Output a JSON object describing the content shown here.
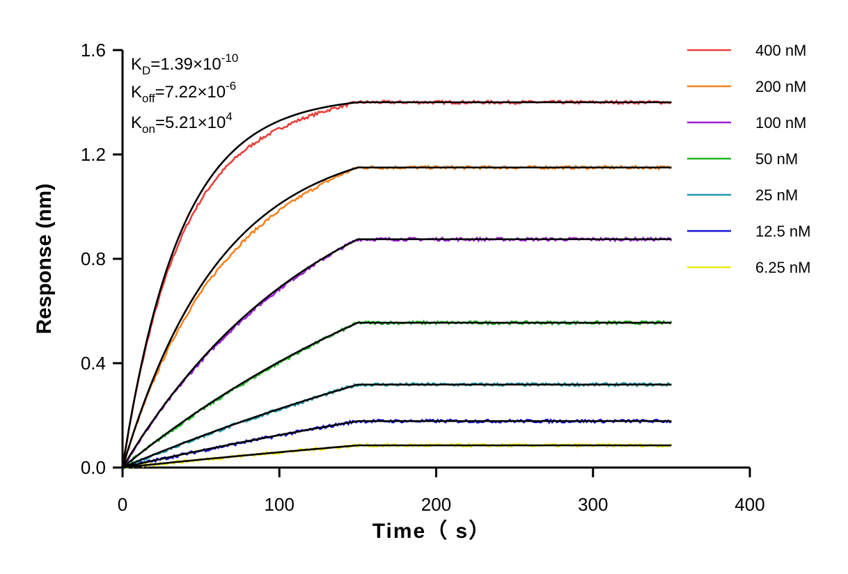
{
  "chart_data": {
    "type": "line",
    "title": "",
    "xlabel": "Time（ s）",
    "ylabel": "Response (nm)",
    "xlim": [
      0,
      400
    ],
    "ylim": [
      0.0,
      1.6
    ],
    "x_ticks": [
      "0",
      "100",
      "200",
      "300",
      "400"
    ],
    "y_ticks": [
      "0.0",
      "0.4",
      "0.8",
      "1.2",
      "1.6"
    ],
    "grid": false,
    "legend_position": "right",
    "association_end_s": 150,
    "dissociation_end_s": 350,
    "annotations": {
      "kd": {
        "base": "K",
        "sub": "D",
        "mid": "=1.39×10",
        "sup": "-10"
      },
      "koff": {
        "base": "K",
        "sub": "off",
        "mid": "=7.22×10",
        "sup": "-6"
      },
      "kon": {
        "base": "K",
        "sub": "on",
        "mid": "=5.21×10",
        "sup": "4"
      }
    },
    "series": [
      {
        "name": "400 nM",
        "color": "#e8403a",
        "plateau": 1.4,
        "kobs": 0.027
      },
      {
        "name": "200 nM",
        "color": "#f5821f",
        "plateau": 1.15,
        "kobs": 0.016
      },
      {
        "name": "100 nM",
        "color": "#9b1fd6",
        "plateau": 0.875,
        "kobs": 0.008
      },
      {
        "name": "50 nM",
        "color": "#1fb51f",
        "plateau": 0.555,
        "kobs": 0.004
      },
      {
        "name": "25 nM",
        "color": "#1f9ab0",
        "plateau": 0.318,
        "kobs": 0.0025
      },
      {
        "name": "12.5 nM",
        "color": "#1414d6",
        "plateau": 0.178,
        "kobs": 0.002
      },
      {
        "name": "6.25 nM",
        "color": "#f2ea15",
        "plateau": 0.085,
        "kobs": 0.0015
      }
    ],
    "fit_color": "#000000"
  }
}
